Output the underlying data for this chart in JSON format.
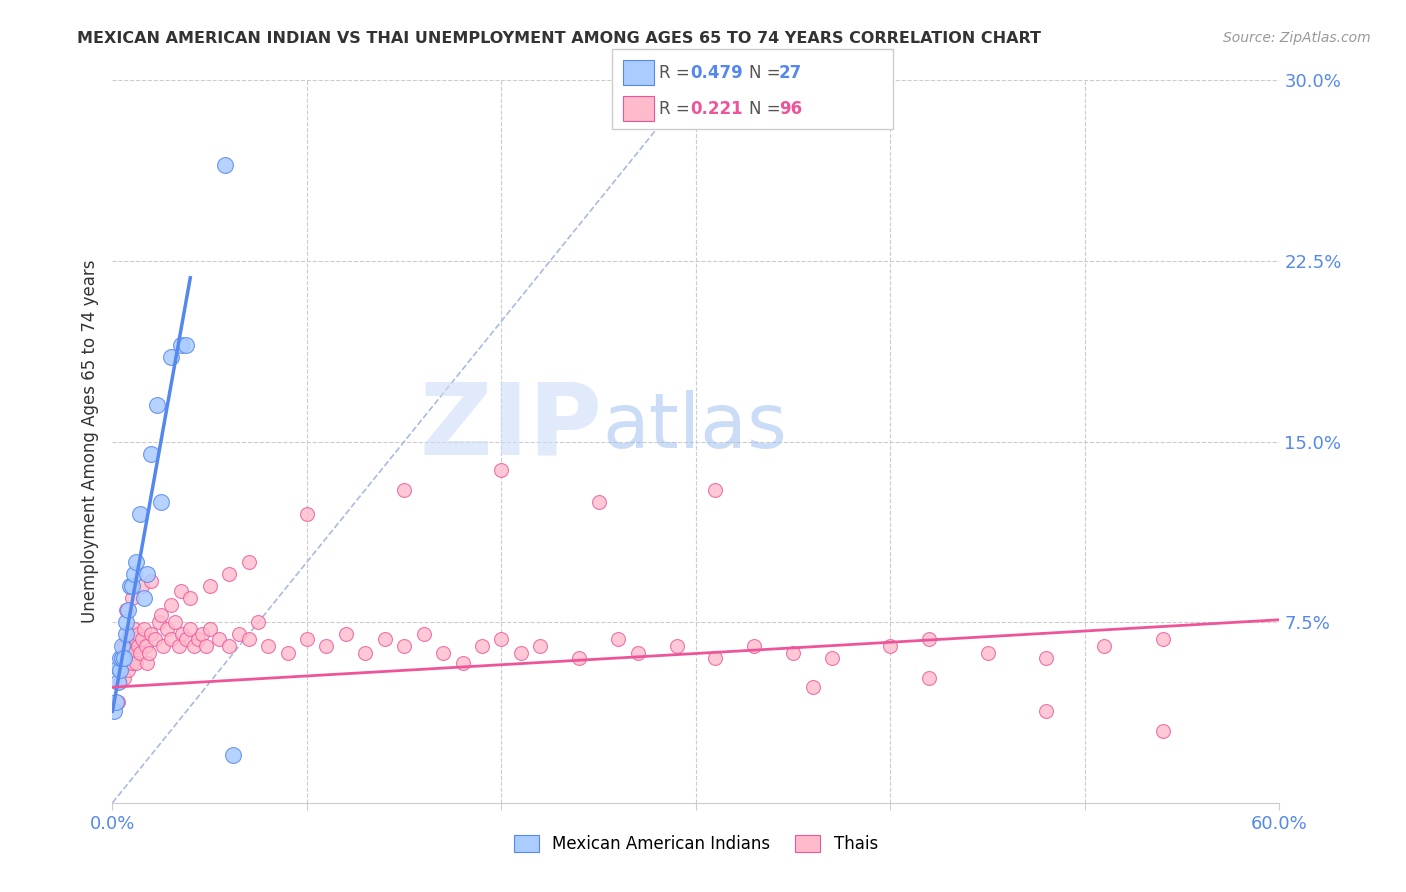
{
  "title": "MEXICAN AMERICAN INDIAN VS THAI UNEMPLOYMENT AMONG AGES 65 TO 74 YEARS CORRELATION CHART",
  "source": "Source: ZipAtlas.com",
  "ylabel": "Unemployment Among Ages 65 to 74 years",
  "xlim": [
    0.0,
    0.6
  ],
  "ylim": [
    0.0,
    0.3
  ],
  "grid_color": "#cccccc",
  "blue_color": "#5588ee",
  "blue_fill": "#aaccff",
  "pink_color": "#ee5599",
  "pink_fill": "#ffbbcc",
  "diag_color": "#aabbdd",
  "watermark_zip_color": "#cce0ff",
  "watermark_atlas_color": "#99bbee",
  "right_tick_color": "#5588ee",
  "xtick_color": "#5588ee",
  "blue_x": [
    0.001,
    0.002,
    0.003,
    0.003,
    0.004,
    0.004,
    0.005,
    0.005,
    0.006,
    0.007,
    0.007,
    0.008,
    0.009,
    0.01,
    0.011,
    0.012,
    0.014,
    0.016,
    0.018,
    0.02,
    0.023,
    0.025,
    0.03,
    0.035,
    0.038,
    0.058,
    0.062
  ],
  "blue_y": [
    0.038,
    0.042,
    0.05,
    0.056,
    0.055,
    0.06,
    0.06,
    0.065,
    0.06,
    0.07,
    0.075,
    0.08,
    0.09,
    0.09,
    0.095,
    0.1,
    0.12,
    0.085,
    0.095,
    0.145,
    0.165,
    0.125,
    0.185,
    0.19,
    0.19,
    0.265,
    0.02
  ],
  "pink_x": [
    0.003,
    0.004,
    0.005,
    0.005,
    0.006,
    0.006,
    0.007,
    0.007,
    0.008,
    0.008,
    0.009,
    0.009,
    0.01,
    0.01,
    0.011,
    0.011,
    0.012,
    0.012,
    0.013,
    0.013,
    0.014,
    0.015,
    0.016,
    0.017,
    0.018,
    0.019,
    0.02,
    0.022,
    0.024,
    0.026,
    0.028,
    0.03,
    0.032,
    0.034,
    0.036,
    0.038,
    0.04,
    0.042,
    0.044,
    0.046,
    0.048,
    0.05,
    0.055,
    0.06,
    0.065,
    0.07,
    0.075,
    0.08,
    0.09,
    0.1,
    0.11,
    0.12,
    0.13,
    0.14,
    0.15,
    0.16,
    0.17,
    0.18,
    0.19,
    0.2,
    0.21,
    0.22,
    0.24,
    0.26,
    0.27,
    0.29,
    0.31,
    0.33,
    0.35,
    0.37,
    0.4,
    0.42,
    0.45,
    0.48,
    0.51,
    0.54,
    0.007,
    0.01,
    0.015,
    0.02,
    0.025,
    0.03,
    0.035,
    0.04,
    0.05,
    0.06,
    0.07,
    0.1,
    0.15,
    0.2,
    0.25,
    0.31,
    0.36,
    0.42,
    0.48,
    0.54
  ],
  "pink_y": [
    0.042,
    0.05,
    0.055,
    0.06,
    0.052,
    0.065,
    0.058,
    0.062,
    0.055,
    0.068,
    0.062,
    0.07,
    0.058,
    0.065,
    0.062,
    0.072,
    0.068,
    0.058,
    0.065,
    0.07,
    0.062,
    0.068,
    0.072,
    0.065,
    0.058,
    0.062,
    0.07,
    0.068,
    0.075,
    0.065,
    0.072,
    0.068,
    0.075,
    0.065,
    0.07,
    0.068,
    0.072,
    0.065,
    0.068,
    0.07,
    0.065,
    0.072,
    0.068,
    0.065,
    0.07,
    0.068,
    0.075,
    0.065,
    0.062,
    0.068,
    0.065,
    0.07,
    0.062,
    0.068,
    0.065,
    0.07,
    0.062,
    0.058,
    0.065,
    0.068,
    0.062,
    0.065,
    0.06,
    0.068,
    0.062,
    0.065,
    0.06,
    0.065,
    0.062,
    0.06,
    0.065,
    0.068,
    0.062,
    0.06,
    0.065,
    0.068,
    0.08,
    0.085,
    0.09,
    0.092,
    0.078,
    0.082,
    0.088,
    0.085,
    0.09,
    0.095,
    0.1,
    0.12,
    0.13,
    0.138,
    0.125,
    0.13,
    0.048,
    0.052,
    0.038,
    0.03
  ],
  "blue_trend_x": [
    0.0,
    0.04
  ],
  "blue_trend_y_start": 0.038,
  "blue_trend_y_end": 0.218,
  "pink_trend_x": [
    0.0,
    0.6
  ],
  "pink_trend_y_start": 0.048,
  "pink_trend_y_end": 0.076
}
